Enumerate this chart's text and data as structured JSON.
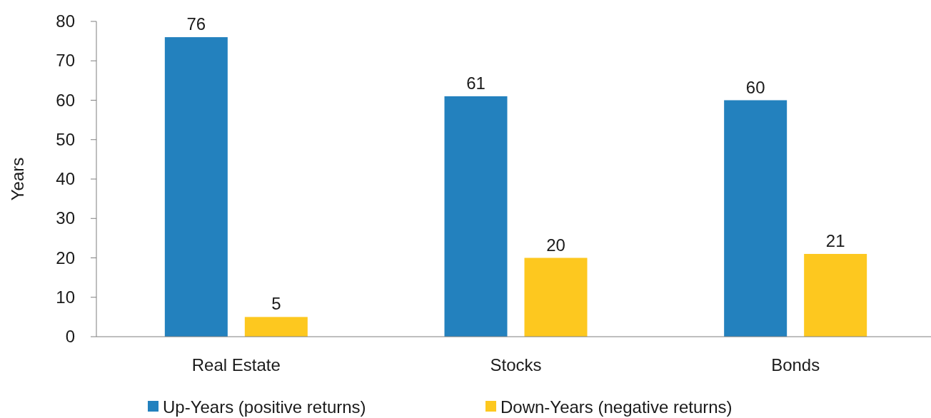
{
  "chart_data": {
    "type": "bar",
    "ylabel": "Years",
    "categories": [
      "Real Estate",
      "Stocks",
      "Bonds"
    ],
    "series": [
      {
        "name": "Up-Years (positive returns)",
        "color": "#2381be",
        "values": [
          76,
          61,
          60
        ]
      },
      {
        "name": "Down-Years (negative returns)",
        "color": "#fdc81f",
        "values": [
          5,
          20,
          21
        ]
      }
    ],
    "ylim": [
      0,
      80
    ],
    "yticks": [
      0,
      10,
      20,
      30,
      40,
      50,
      60,
      70,
      80
    ],
    "data_labels": true,
    "legend": "bottom",
    "grid": false
  }
}
